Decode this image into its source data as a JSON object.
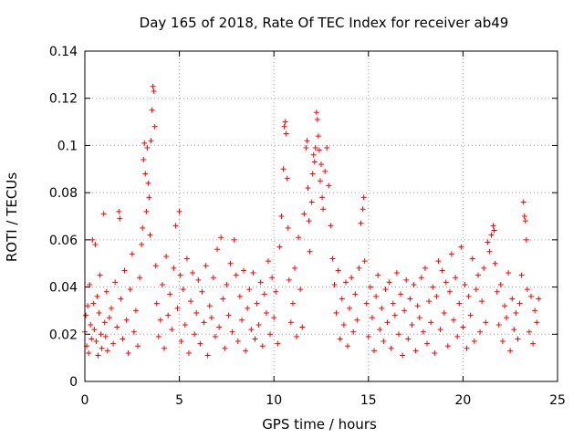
{
  "chart_data": {
    "type": "scatter",
    "title": "Day 165 of 2018, Rate Of TEC Index for receiver ab49",
    "xlabel": "GPS time / hours",
    "ylabel": "ROTI / TECUs",
    "xlim": [
      0,
      25
    ],
    "ylim": [
      0,
      0.14
    ],
    "xticks": [
      0,
      5,
      10,
      15,
      20,
      25
    ],
    "xtick_labels": [
      "0",
      "5",
      "10",
      "15",
      "20",
      "25"
    ],
    "yticks": [
      0,
      0.02,
      0.04,
      0.06,
      0.08,
      0.1,
      0.12,
      0.14
    ],
    "ytick_labels": [
      "0",
      "0.02",
      "0.04",
      "0.06",
      "0.08",
      "0.1",
      "0.12",
      "0.14"
    ],
    "grid": true,
    "marker": "+",
    "color": "#ff0000",
    "points": [
      [
        0.0,
        0.021
      ],
      [
        0.05,
        0.028
      ],
      [
        0.1,
        0.015
      ],
      [
        0.15,
        0.032
      ],
      [
        0.2,
        0.012
      ],
      [
        0.25,
        0.041
      ],
      [
        0.3,
        0.024
      ],
      [
        0.35,
        0.018
      ],
      [
        0.4,
        0.06
      ],
      [
        0.45,
        0.033
      ],
      [
        0.5,
        0.022
      ],
      [
        0.55,
        0.058
      ],
      [
        0.6,
        0.017
      ],
      [
        0.65,
        0.036
      ],
      [
        0.7,
        0.011
      ],
      [
        0.75,
        0.029
      ],
      [
        0.8,
        0.045
      ],
      [
        0.85,
        0.02
      ],
      [
        0.9,
        0.014
      ],
      [
        1.0,
        0.071
      ],
      [
        1.05,
        0.025
      ],
      [
        1.1,
        0.019
      ],
      [
        1.15,
        0.038
      ],
      [
        1.2,
        0.013
      ],
      [
        1.3,
        0.027
      ],
      [
        1.4,
        0.031
      ],
      [
        1.5,
        0.016
      ],
      [
        1.6,
        0.042
      ],
      [
        1.7,
        0.023
      ],
      [
        1.8,
        0.072
      ],
      [
        1.85,
        0.069
      ],
      [
        1.9,
        0.035
      ],
      [
        2.0,
        0.018
      ],
      [
        2.1,
        0.047
      ],
      [
        2.2,
        0.026
      ],
      [
        2.3,
        0.012
      ],
      [
        2.4,
        0.039
      ],
      [
        2.5,
        0.054
      ],
      [
        2.6,
        0.021
      ],
      [
        2.7,
        0.03
      ],
      [
        2.8,
        0.015
      ],
      [
        2.9,
        0.044
      ],
      [
        3.0,
        0.058
      ],
      [
        3.05,
        0.065
      ],
      [
        3.1,
        0.094
      ],
      [
        3.15,
        0.101
      ],
      [
        3.2,
        0.088
      ],
      [
        3.25,
        0.072
      ],
      [
        3.3,
        0.099
      ],
      [
        3.35,
        0.084
      ],
      [
        3.4,
        0.078
      ],
      [
        3.45,
        0.062
      ],
      [
        3.5,
        0.102
      ],
      [
        3.55,
        0.115
      ],
      [
        3.6,
        0.125
      ],
      [
        3.65,
        0.123
      ],
      [
        3.7,
        0.108
      ],
      [
        3.75,
        0.049
      ],
      [
        3.8,
        0.033
      ],
      [
        3.9,
        0.019
      ],
      [
        4.0,
        0.026
      ],
      [
        4.1,
        0.041
      ],
      [
        4.2,
        0.014
      ],
      [
        4.3,
        0.053
      ],
      [
        4.4,
        0.028
      ],
      [
        4.5,
        0.037
      ],
      [
        4.6,
        0.022
      ],
      [
        4.7,
        0.048
      ],
      [
        4.8,
        0.066
      ],
      [
        4.9,
        0.031
      ],
      [
        5.0,
        0.072
      ],
      [
        5.05,
        0.045
      ],
      [
        5.1,
        0.017
      ],
      [
        5.2,
        0.039
      ],
      [
        5.3,
        0.024
      ],
      [
        5.4,
        0.052
      ],
      [
        5.5,
        0.012
      ],
      [
        5.6,
        0.034
      ],
      [
        5.7,
        0.046
      ],
      [
        5.8,
        0.02
      ],
      [
        5.9,
        0.029
      ],
      [
        6.0,
        0.043
      ],
      [
        6.1,
        0.016
      ],
      [
        6.2,
        0.038
      ],
      [
        6.3,
        0.025
      ],
      [
        6.4,
        0.049
      ],
      [
        6.5,
        0.011
      ],
      [
        6.6,
        0.032
      ],
      [
        6.7,
        0.027
      ],
      [
        6.8,
        0.044
      ],
      [
        6.9,
        0.019
      ],
      [
        7.0,
        0.056
      ],
      [
        7.1,
        0.023
      ],
      [
        7.2,
        0.061
      ],
      [
        7.3,
        0.035
      ],
      [
        7.4,
        0.014
      ],
      [
        7.5,
        0.041
      ],
      [
        7.6,
        0.028
      ],
      [
        7.7,
        0.05
      ],
      [
        7.8,
        0.021
      ],
      [
        7.9,
        0.06
      ],
      [
        8.0,
        0.045
      ],
      [
        8.1,
        0.017
      ],
      [
        8.2,
        0.036
      ],
      [
        8.3,
        0.026
      ],
      [
        8.4,
        0.047
      ],
      [
        8.5,
        0.013
      ],
      [
        8.6,
        0.031
      ],
      [
        8.7,
        0.039
      ],
      [
        8.8,
        0.022
      ],
      [
        8.9,
        0.046
      ],
      [
        9.0,
        0.018
      ],
      [
        9.1,
        0.033
      ],
      [
        9.2,
        0.024
      ],
      [
        9.3,
        0.042
      ],
      [
        9.4,
        0.015
      ],
      [
        9.5,
        0.037
      ],
      [
        9.6,
        0.029
      ],
      [
        9.7,
        0.051
      ],
      [
        9.8,
        0.02
      ],
      [
        9.9,
        0.044
      ],
      [
        10.0,
        0.027
      ],
      [
        10.1,
        0.038
      ],
      [
        10.2,
        0.016
      ],
      [
        10.3,
        0.057
      ],
      [
        10.4,
        0.07
      ],
      [
        10.5,
        0.09
      ],
      [
        10.55,
        0.108
      ],
      [
        10.6,
        0.11
      ],
      [
        10.65,
        0.105
      ],
      [
        10.7,
        0.086
      ],
      [
        10.75,
        0.065
      ],
      [
        10.8,
        0.043
      ],
      [
        10.9,
        0.025
      ],
      [
        11.0,
        0.033
      ],
      [
        11.1,
        0.048
      ],
      [
        11.2,
        0.019
      ],
      [
        11.3,
        0.061
      ],
      [
        11.4,
        0.039
      ],
      [
        11.5,
        0.023
      ],
      [
        11.6,
        0.071
      ],
      [
        11.7,
        0.099
      ],
      [
        11.75,
        0.102
      ],
      [
        11.8,
        0.082
      ],
      [
        11.85,
        0.068
      ],
      [
        11.9,
        0.055
      ],
      [
        12.0,
        0.076
      ],
      [
        12.05,
        0.088
      ],
      [
        12.1,
        0.096
      ],
      [
        12.15,
        0.093
      ],
      [
        12.2,
        0.099
      ],
      [
        12.25,
        0.114
      ],
      [
        12.3,
        0.111
      ],
      [
        12.35,
        0.104
      ],
      [
        12.4,
        0.098
      ],
      [
        12.45,
        0.085
      ],
      [
        12.5,
        0.092
      ],
      [
        12.55,
        0.078
      ],
      [
        12.6,
        0.073
      ],
      [
        12.7,
        0.089
      ],
      [
        12.8,
        0.099
      ],
      [
        12.9,
        0.083
      ],
      [
        13.0,
        0.066
      ],
      [
        13.1,
        0.052
      ],
      [
        13.2,
        0.041
      ],
      [
        13.3,
        0.029
      ],
      [
        13.4,
        0.047
      ],
      [
        13.5,
        0.018
      ],
      [
        13.6,
        0.035
      ],
      [
        13.7,
        0.024
      ],
      [
        13.8,
        0.042
      ],
      [
        13.9,
        0.015
      ],
      [
        14.0,
        0.031
      ],
      [
        14.1,
        0.044
      ],
      [
        14.2,
        0.021
      ],
      [
        14.3,
        0.037
      ],
      [
        14.4,
        0.026
      ],
      [
        14.5,
        0.048
      ],
      [
        14.6,
        0.067
      ],
      [
        14.7,
        0.073
      ],
      [
        14.75,
        0.078
      ],
      [
        14.8,
        0.051
      ],
      [
        14.9,
        0.033
      ],
      [
        15.0,
        0.019
      ],
      [
        15.1,
        0.04
      ],
      [
        15.2,
        0.027
      ],
      [
        15.3,
        0.013
      ],
      [
        15.4,
        0.036
      ],
      [
        15.5,
        0.045
      ],
      [
        15.6,
        0.022
      ],
      [
        15.7,
        0.031
      ],
      [
        15.8,
        0.017
      ],
      [
        15.9,
        0.039
      ],
      [
        16.0,
        0.025
      ],
      [
        16.1,
        0.042
      ],
      [
        16.2,
        0.014
      ],
      [
        16.3,
        0.033
      ],
      [
        16.4,
        0.028
      ],
      [
        16.5,
        0.046
      ],
      [
        16.6,
        0.02
      ],
      [
        16.7,
        0.037
      ],
      [
        16.8,
        0.011
      ],
      [
        16.9,
        0.03
      ],
      [
        17.0,
        0.043
      ],
      [
        17.1,
        0.018
      ],
      [
        17.2,
        0.035
      ],
      [
        17.3,
        0.024
      ],
      [
        17.4,
        0.041
      ],
      [
        17.5,
        0.013
      ],
      [
        17.6,
        0.032
      ],
      [
        17.7,
        0.027
      ],
      [
        17.8,
        0.044
      ],
      [
        17.9,
        0.021
      ],
      [
        18.0,
        0.048
      ],
      [
        18.1,
        0.016
      ],
      [
        18.2,
        0.034
      ],
      [
        18.3,
        0.025
      ],
      [
        18.4,
        0.04
      ],
      [
        18.5,
        0.012
      ],
      [
        18.6,
        0.036
      ],
      [
        18.7,
        0.051
      ],
      [
        18.8,
        0.022
      ],
      [
        18.9,
        0.047
      ],
      [
        19.0,
        0.029
      ],
      [
        19.1,
        0.042
      ],
      [
        19.2,
        0.015
      ],
      [
        19.3,
        0.038
      ],
      [
        19.4,
        0.054
      ],
      [
        19.5,
        0.026
      ],
      [
        19.6,
        0.044
      ],
      [
        19.7,
        0.019
      ],
      [
        19.8,
        0.033
      ],
      [
        19.9,
        0.057
      ],
      [
        20.0,
        0.023
      ],
      [
        20.1,
        0.041
      ],
      [
        20.2,
        0.014
      ],
      [
        20.3,
        0.036
      ],
      [
        20.4,
        0.028
      ],
      [
        20.5,
        0.052
      ],
      [
        20.6,
        0.017
      ],
      [
        20.7,
        0.039
      ],
      [
        20.8,
        0.045
      ],
      [
        20.9,
        0.021
      ],
      [
        21.0,
        0.034
      ],
      [
        21.1,
        0.048
      ],
      [
        21.2,
        0.025
      ],
      [
        21.3,
        0.059
      ],
      [
        21.4,
        0.055
      ],
      [
        21.5,
        0.062
      ],
      [
        21.6,
        0.066
      ],
      [
        21.65,
        0.064
      ],
      [
        21.7,
        0.05
      ],
      [
        21.8,
        0.038
      ],
      [
        21.9,
        0.024
      ],
      [
        22.0,
        0.041
      ],
      [
        22.1,
        0.017
      ],
      [
        22.2,
        0.032
      ],
      [
        22.3,
        0.027
      ],
      [
        22.4,
        0.046
      ],
      [
        22.5,
        0.013
      ],
      [
        22.6,
        0.035
      ],
      [
        22.7,
        0.022
      ],
      [
        22.8,
        0.029
      ],
      [
        22.9,
        0.018
      ],
      [
        23.0,
        0.033
      ],
      [
        23.1,
        0.045
      ],
      [
        23.2,
        0.076
      ],
      [
        23.25,
        0.07
      ],
      [
        23.3,
        0.068
      ],
      [
        23.35,
        0.06
      ],
      [
        23.4,
        0.039
      ],
      [
        23.5,
        0.021
      ],
      [
        23.6,
        0.036
      ],
      [
        23.7,
        0.016
      ],
      [
        23.8,
        0.03
      ],
      [
        23.9,
        0.025
      ],
      [
        24.0,
        0.035
      ]
    ]
  }
}
